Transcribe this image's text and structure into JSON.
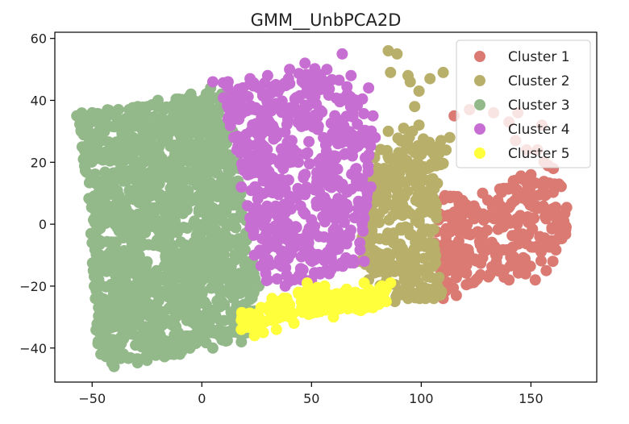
{
  "chart_data": {
    "type": "scatter",
    "title": "GMM__UnbPCA2D",
    "xlabel": "",
    "ylabel": "",
    "xlim": [
      -67,
      180
    ],
    "ylim": [
      -51,
      62
    ],
    "x_ticks": [
      -50,
      0,
      50,
      100,
      150
    ],
    "y_ticks": [
      -40,
      -20,
      0,
      20,
      40,
      60
    ],
    "grid": false,
    "legend_position": "top-right",
    "series": [
      {
        "name": "Cluster 1",
        "color": "#db7a73",
        "region": [
          [
            108,
            10
          ],
          [
            128,
            8
          ],
          [
            150,
            18
          ],
          [
            160,
            22
          ],
          [
            168,
            2
          ],
          [
            164,
            -8
          ],
          [
            148,
            -18
          ],
          [
            128,
            -18
          ],
          [
            110,
            -24
          ],
          [
            106,
            -5
          ]
        ],
        "count": 260,
        "points": [
          [
            115,
            35
          ],
          [
            122,
            37
          ],
          [
            133,
            36
          ],
          [
            140,
            33
          ],
          [
            144,
            36
          ],
          [
            155,
            32
          ],
          [
            143,
            27
          ],
          [
            153,
            24
          ],
          [
            148,
            24
          ],
          [
            158,
            19
          ],
          [
            150,
            16
          ],
          [
            160,
            5
          ],
          [
            165,
            1
          ],
          [
            162,
            -5
          ],
          [
            160,
            -12
          ],
          [
            157,
            -15
          ],
          [
            152,
            -18
          ],
          [
            146,
            -12
          ],
          [
            140,
            -18
          ],
          [
            125,
            -18
          ],
          [
            116,
            -23
          ],
          [
            110,
            -24
          ],
          [
            108,
            -20
          ],
          [
            106,
            -6
          ],
          [
            110,
            8
          ],
          [
            128,
            10
          ],
          [
            136,
            6
          ],
          [
            142,
            14
          ],
          [
            130,
            -2
          ],
          [
            120,
            -8
          ],
          [
            134,
            -10
          ],
          [
            146,
            2
          ],
          [
            154,
            -4
          ]
        ]
      },
      {
        "name": "Cluster 2",
        "color": "#b8b06a",
        "region": [
          [
            80,
            25
          ],
          [
            95,
            30
          ],
          [
            112,
            25
          ],
          [
            108,
            8
          ],
          [
            106,
            -5
          ],
          [
            110,
            -24
          ],
          [
            100,
            -25
          ],
          [
            90,
            -24
          ],
          [
            80,
            -20
          ],
          [
            74,
            -14
          ],
          [
            72,
            -6
          ],
          [
            76,
            4
          ],
          [
            76,
            15
          ]
        ],
        "count": 320,
        "points": [
          [
            85,
            56
          ],
          [
            89,
            55
          ],
          [
            86,
            49
          ],
          [
            94,
            48
          ],
          [
            99,
            43
          ],
          [
            95,
            46
          ],
          [
            104,
            47
          ],
          [
            110,
            49
          ],
          [
            97,
            38
          ],
          [
            103,
            24
          ],
          [
            109,
            27
          ],
          [
            92,
            31
          ],
          [
            99,
            32
          ],
          [
            96,
            30
          ],
          [
            85,
            30
          ],
          [
            113,
            28
          ],
          [
            106,
            20
          ],
          [
            97,
            18
          ],
          [
            82,
            16
          ],
          [
            77,
            5
          ],
          [
            74,
            -4
          ],
          [
            72,
            -12
          ],
          [
            76,
            -18
          ],
          [
            82,
            -21
          ],
          [
            88,
            -25
          ],
          [
            94,
            -24
          ],
          [
            102,
            -24
          ],
          [
            108,
            -23
          ],
          [
            104,
            -6
          ],
          [
            97,
            -10
          ],
          [
            91,
            4
          ],
          [
            100,
            8
          ],
          [
            86,
            -4
          ],
          [
            92,
            -16
          ],
          [
            98,
            12
          ],
          [
            81,
            -10
          ],
          [
            89,
            12
          ],
          [
            107,
            2
          ]
        ]
      },
      {
        "name": "Cluster 3",
        "color": "#93b88a",
        "region": [
          [
            -57,
            36
          ],
          [
            -30,
            38
          ],
          [
            0,
            42
          ],
          [
            8,
            44
          ],
          [
            18,
            16
          ],
          [
            22,
            -12
          ],
          [
            26,
            -20
          ],
          [
            20,
            -36
          ],
          [
            0,
            -40
          ],
          [
            -20,
            -44
          ],
          [
            -40,
            -46
          ],
          [
            -48,
            -40
          ],
          [
            -50,
            -12
          ],
          [
            -52,
            12
          ],
          [
            -56,
            30
          ]
        ],
        "count": 1400,
        "points": [
          [
            -57,
            35
          ],
          [
            -50,
            36
          ],
          [
            -38,
            37
          ],
          [
            -20,
            40
          ],
          [
            -5,
            42
          ],
          [
            4,
            44
          ],
          [
            9,
            42
          ],
          [
            14,
            30
          ],
          [
            17,
            18
          ],
          [
            18,
            4
          ],
          [
            21,
            -4
          ],
          [
            23,
            -12
          ],
          [
            26,
            -20
          ],
          [
            24,
            -28
          ],
          [
            22,
            -34
          ],
          [
            18,
            -38
          ],
          [
            5,
            -40
          ],
          [
            -10,
            -42
          ],
          [
            -25,
            -44
          ],
          [
            -40,
            -46
          ],
          [
            -46,
            -42
          ],
          [
            -48,
            -34
          ],
          [
            -49,
            -20
          ],
          [
            -50,
            -6
          ],
          [
            -51,
            8
          ],
          [
            -53,
            22
          ],
          [
            -55,
            30
          ]
        ]
      },
      {
        "name": "Cluster 4",
        "color": "#c76ed2",
        "region": [
          [
            8,
            46
          ],
          [
            30,
            46
          ],
          [
            50,
            52
          ],
          [
            60,
            48
          ],
          [
            74,
            40
          ],
          [
            78,
            30
          ],
          [
            76,
            15
          ],
          [
            76,
            4
          ],
          [
            72,
            -6
          ],
          [
            74,
            -12
          ],
          [
            62,
            -14
          ],
          [
            40,
            -20
          ],
          [
            26,
            -18
          ],
          [
            24,
            -10
          ],
          [
            20,
            4
          ],
          [
            18,
            18
          ],
          [
            12,
            32
          ]
        ],
        "count": 560,
        "points": [
          [
            5,
            46
          ],
          [
            12,
            46
          ],
          [
            22,
            47
          ],
          [
            30,
            48
          ],
          [
            40,
            50
          ],
          [
            47,
            52
          ],
          [
            57,
            50
          ],
          [
            64,
            55
          ],
          [
            68,
            48
          ],
          [
            76,
            44
          ],
          [
            78,
            35
          ],
          [
            79,
            28
          ],
          [
            76,
            22
          ],
          [
            77,
            12
          ],
          [
            74,
            2
          ],
          [
            72,
            -6
          ],
          [
            74,
            -12
          ],
          [
            66,
            -12
          ],
          [
            58,
            -16
          ],
          [
            50,
            -18
          ],
          [
            38,
            -20
          ],
          [
            30,
            -18
          ],
          [
            24,
            -10
          ],
          [
            22,
            2
          ],
          [
            18,
            12
          ],
          [
            16,
            24
          ],
          [
            12,
            34
          ],
          [
            32,
            30
          ],
          [
            44,
            20
          ],
          [
            54,
            8
          ],
          [
            38,
            -4
          ],
          [
            62,
            26
          ],
          [
            48,
            38
          ],
          [
            28,
            14
          ],
          [
            60,
            -2
          ]
        ]
      },
      {
        "name": "Cluster 5",
        "color": "#ffff3c",
        "region": [
          [
            18,
            -28
          ],
          [
            30,
            -25
          ],
          [
            50,
            -20
          ],
          [
            68,
            -22
          ],
          [
            85,
            -20
          ],
          [
            80,
            -28
          ],
          [
            60,
            -28
          ],
          [
            40,
            -30
          ],
          [
            24,
            -34
          ],
          [
            18,
            -34
          ]
        ],
        "count": 150,
        "points": [
          [
            18,
            -31
          ],
          [
            18,
            -34
          ],
          [
            22,
            -33
          ],
          [
            26,
            -30
          ],
          [
            30,
            -27
          ],
          [
            36,
            -30
          ],
          [
            40,
            -26
          ],
          [
            44,
            -22
          ],
          [
            48,
            -19
          ],
          [
            54,
            -27
          ],
          [
            58,
            -24
          ],
          [
            62,
            -26
          ],
          [
            66,
            -21
          ],
          [
            70,
            -22
          ],
          [
            76,
            -24
          ],
          [
            82,
            -20
          ],
          [
            86,
            -19
          ],
          [
            84,
            -25
          ],
          [
            68,
            -27
          ],
          [
            60,
            -30
          ],
          [
            50,
            -28
          ],
          [
            42,
            -32
          ],
          [
            34,
            -34
          ],
          [
            28,
            -35
          ],
          [
            24,
            -36
          ],
          [
            32,
            -24
          ],
          [
            56,
            -20
          ],
          [
            74,
            -19
          ]
        ]
      }
    ]
  }
}
